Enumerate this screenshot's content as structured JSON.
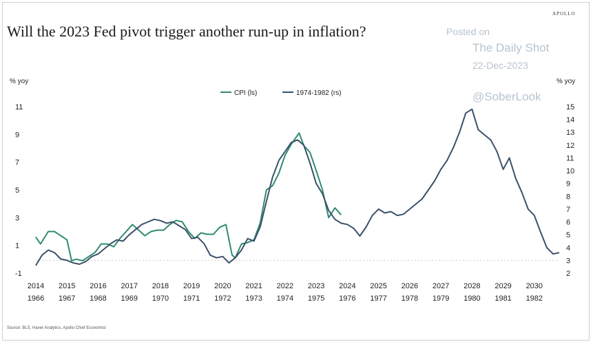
{
  "brand": "APOLLO",
  "watermark": {
    "posted": "Posted on",
    "site": "The Daily Shot",
    "date": "22-Dec-2023",
    "handle": "@SoberLook"
  },
  "source": "Source: BLS, Haver Analytics, Apollo Chief Economist",
  "chart_data": {
    "type": "line",
    "title": "Will the 2023 Fed pivot trigger another run-up in inflation?",
    "ylabel_left": "% yoy",
    "ylabel_right": "% yoy",
    "ylim_left": [
      -1,
      11
    ],
    "ylim_right": [
      2,
      15
    ],
    "yticks_left": [
      "11",
      "9",
      "7",
      "5",
      "3",
      "1",
      "-1"
    ],
    "yticks_right": [
      "15",
      "14",
      "13",
      "12",
      "11",
      "10",
      "9",
      "8",
      "7",
      "6",
      "5",
      "4",
      "3",
      "2"
    ],
    "xticks_top": [
      "2014",
      "2015",
      "2016",
      "2017",
      "2018",
      "2019",
      "2020",
      "2021",
      "2022",
      "2023",
      "2024",
      "2025",
      "2026",
      "2027",
      "2028",
      "2029",
      "2030"
    ],
    "xticks_bottom": [
      "1966",
      "1967",
      "1968",
      "1969",
      "1970",
      "1971",
      "1972",
      "1973",
      "1974",
      "1975",
      "1976",
      "1977",
      "1978",
      "1979",
      "1980",
      "1981",
      "1982"
    ],
    "xlim": [
      2014,
      2030.8
    ],
    "legend_position": "top-center",
    "grid": false,
    "series": [
      {
        "name": "CPI (ls)",
        "axis": "left",
        "color": "#2e8b6e",
        "x": [
          2014.0,
          2014.15,
          2014.4,
          2014.6,
          2014.8,
          2015.0,
          2015.15,
          2015.3,
          2015.5,
          2015.7,
          2015.9,
          2016.1,
          2016.3,
          2016.5,
          2016.7,
          2016.9,
          2017.1,
          2017.3,
          2017.5,
          2017.7,
          2017.9,
          2018.1,
          2018.3,
          2018.5,
          2018.7,
          2018.9,
          2019.1,
          2019.3,
          2019.5,
          2019.7,
          2019.9,
          2020.1,
          2020.3,
          2020.4,
          2020.6,
          2020.8,
          2021.0,
          2021.2,
          2021.4,
          2021.6,
          2021.8,
          2022.0,
          2022.2,
          2022.45,
          2022.6,
          2022.8,
          2023.0,
          2023.2,
          2023.4,
          2023.6,
          2023.8
        ],
        "values": [
          1.6,
          1.1,
          2.0,
          2.0,
          1.7,
          1.4,
          -0.1,
          0.0,
          -0.1,
          0.2,
          0.5,
          1.1,
          1.1,
          0.9,
          1.5,
          2.0,
          2.5,
          2.1,
          1.7,
          2.0,
          2.1,
          2.1,
          2.5,
          2.8,
          2.7,
          2.0,
          1.5,
          1.9,
          1.8,
          1.8,
          2.3,
          2.5,
          0.3,
          0.1,
          1.1,
          1.2,
          1.4,
          2.6,
          5.0,
          5.3,
          6.2,
          7.5,
          8.3,
          9.1,
          8.2,
          7.7,
          6.4,
          5.0,
          3.0,
          3.7,
          3.2
        ]
      },
      {
        "name": "1974-1982 (rs)",
        "axis": "right",
        "color": "#3b5068",
        "x": [
          2014.0,
          2014.2,
          2014.4,
          2014.6,
          2014.8,
          2015.0,
          2015.2,
          2015.4,
          2015.6,
          2015.8,
          2016.0,
          2016.2,
          2016.4,
          2016.6,
          2016.8,
          2017.0,
          2017.2,
          2017.4,
          2017.6,
          2017.8,
          2018.0,
          2018.2,
          2018.4,
          2018.6,
          2018.8,
          2019.0,
          2019.2,
          2019.4,
          2019.6,
          2019.8,
          2020.0,
          2020.2,
          2020.4,
          2020.6,
          2020.8,
          2021.0,
          2021.2,
          2021.4,
          2021.6,
          2021.8,
          2022.0,
          2022.2,
          2022.4,
          2022.6,
          2022.8,
          2023.0,
          2023.2,
          2023.4,
          2023.6,
          2023.8,
          2024.0,
          2024.2,
          2024.4,
          2024.6,
          2024.8,
          2025.0,
          2025.2,
          2025.4,
          2025.6,
          2025.8,
          2026.0,
          2026.2,
          2026.4,
          2026.6,
          2026.8,
          2027.0,
          2027.2,
          2027.4,
          2027.6,
          2027.8,
          2028.0,
          2028.2,
          2028.4,
          2028.6,
          2028.8,
          2029.0,
          2029.2,
          2029.4,
          2029.6,
          2029.8,
          2030.0,
          2030.2,
          2030.4,
          2030.6,
          2030.8
        ],
        "values": [
          2.6,
          3.4,
          3.8,
          3.6,
          3.1,
          3.0,
          2.8,
          2.7,
          2.9,
          3.3,
          3.5,
          3.9,
          4.3,
          4.6,
          4.5,
          5.0,
          5.4,
          5.8,
          6.0,
          6.2,
          6.1,
          5.9,
          6.0,
          5.7,
          5.4,
          4.7,
          4.8,
          4.3,
          3.4,
          3.2,
          3.3,
          2.8,
          3.2,
          3.8,
          4.7,
          4.5,
          5.6,
          7.6,
          9.5,
          10.8,
          11.5,
          12.2,
          12.4,
          12.0,
          10.6,
          9.0,
          8.2,
          6.9,
          6.2,
          5.9,
          5.8,
          5.5,
          4.9,
          5.6,
          6.5,
          7.0,
          6.7,
          6.8,
          6.5,
          6.6,
          7.0,
          7.4,
          7.8,
          8.5,
          9.2,
          10.1,
          10.8,
          11.8,
          13.0,
          14.5,
          14.8,
          13.2,
          12.8,
          12.4,
          11.5,
          10.1,
          11.0,
          9.4,
          8.3,
          7.0,
          6.5,
          5.2,
          4.0,
          3.5,
          3.6
        ]
      }
    ]
  }
}
